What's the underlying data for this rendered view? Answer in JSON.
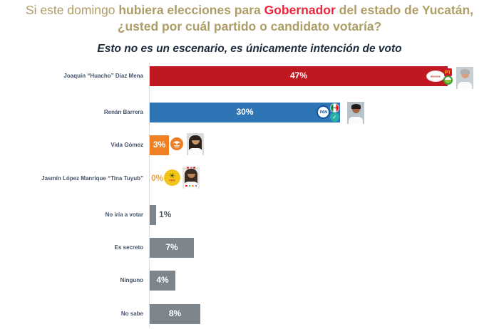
{
  "header": {
    "title_line1_segments": [
      {
        "text": "Si este domingo ",
        "style": "gold-regular"
      },
      {
        "text": "hubiera elecciones para ",
        "style": "gold-bold"
      },
      {
        "text": "Gobernador",
        "style": "red-bold"
      },
      {
        "text": " del estado de Yucatán,",
        "style": "gold-bold"
      }
    ],
    "title_line2": "¿usted por cuál partido o candidato votaría?",
    "subtitle": "Esto no es un escenario, es únicamente intención de voto"
  },
  "colors": {
    "title_gold": "#AE9D66",
    "title_red": "#E8283C",
    "subtitle_navy": "#1B2A3C",
    "bar_red": "#C01820",
    "bar_blue": "#2E75B6",
    "bar_orange": "#F08123",
    "bar_gray": "#7C848C",
    "label_slate": "#44546A"
  },
  "chart_data": {
    "type": "bar",
    "orientation": "horizontal",
    "unit": "%",
    "xlim": [
      0,
      50
    ],
    "grid": false,
    "legend": "none",
    "title": "Esto no es un escenario, es únicamente intención de voto",
    "categories": [
      "Joaquín “Huacho” Díaz Mena",
      "Renán Barrera",
      "Vida Gómez",
      "Jasmín López Manrique “Tina Tuyub”",
      "No iría a votar",
      "Es secreto",
      "Ninguno",
      "No sabe"
    ],
    "values": [
      47,
      30,
      3,
      0,
      1,
      7,
      4,
      8
    ],
    "rows": [
      {
        "label": "Joaquín “Huacho” Díaz Mena",
        "value": 47,
        "value_label": "47%",
        "value_position": "inside",
        "bar_color": "#C01820",
        "party_logos": [
          "morena",
          "pt",
          "pvem"
        ],
        "logo_texts": {
          "morena": "morena",
          "pt": "PT",
          "pvem": ""
        },
        "photo": {
          "bg": "#C7CFD4",
          "hair": "#AFAFAD",
          "skin": "#D8A184",
          "shirt": "#FBFBFB",
          "hair_style": "short"
        }
      },
      {
        "label": "Renán Barrera",
        "value": 30,
        "value_label": "30%",
        "value_position": "inside",
        "bar_color": "#2E75B6",
        "party_logos": [
          "pan",
          "pri",
          "na"
        ],
        "logo_texts": {
          "pan": "PAN",
          "pri": "PRI",
          "na": "✓"
        },
        "photo": {
          "bg": "#B7C3CB",
          "hair": "#1E1A17",
          "skin": "#9C6644",
          "shirt": "#FBFBFB",
          "hair_style": "short"
        }
      },
      {
        "label": "Vida Gómez",
        "value": 3,
        "value_label": "3%",
        "value_position": "inside",
        "bar_color": "#F08123",
        "party_logos": [
          "mc"
        ],
        "logo_texts": {
          "mc": ""
        },
        "photo": {
          "bg": "#D9DADB",
          "hair": "#2E2119",
          "skin": "#C6946B",
          "shirt": "#FBFBFB",
          "hair_style": "long"
        }
      },
      {
        "label": "Jasmín López Manrique “Tina Tuyub”",
        "value": 0,
        "value_label": "0%",
        "value_position": "zero",
        "bar_color": "#F0C419",
        "party_logos": [
          "prd"
        ],
        "logo_texts": {
          "prd": "PRD",
          "prd_sun": "☀"
        },
        "photo": {
          "bg": "#EBE7E0",
          "hair": "#3A2C22",
          "skin": "#B98055",
          "shirt": "#FBFBFB",
          "hair_style": "long",
          "crown": [
            "#D64541",
            "#E4738B",
            "#C0392B"
          ],
          "accents": [
            "#DD0044",
            "#22AA77",
            "#FF9900",
            "#3366CC"
          ]
        }
      },
      {
        "label": "No iría a votar",
        "value": 1,
        "value_label": "1%",
        "value_position": "outside",
        "bar_color": "#7C848C",
        "party_logos": []
      },
      {
        "label": "Es secreto",
        "value": 7,
        "value_label": "7%",
        "value_position": "inside",
        "bar_color": "#7C848C",
        "party_logos": []
      },
      {
        "label": "Ninguno",
        "value": 4,
        "value_label": "4%",
        "value_position": "inside",
        "bar_color": "#7C848C",
        "party_logos": []
      },
      {
        "label": "No sabe",
        "value": 8,
        "value_label": "8%",
        "value_position": "inside",
        "bar_color": "#7C848C",
        "party_logos": []
      }
    ]
  }
}
